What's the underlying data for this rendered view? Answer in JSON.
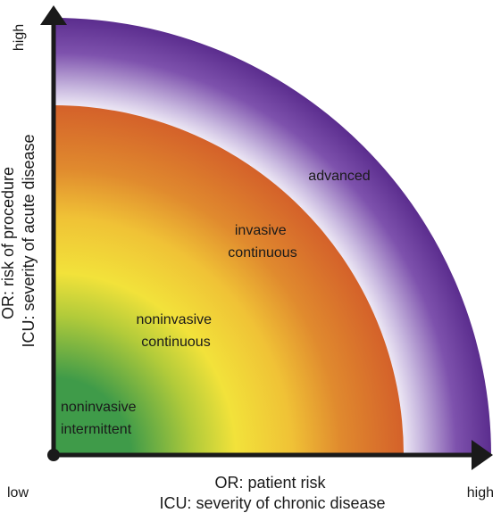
{
  "diagram": {
    "zones": [
      {
        "id": "advanced",
        "lines": [
          "advanced"
        ]
      },
      {
        "id": "invasive-continuous",
        "lines": [
          "invasive",
          "continuous"
        ]
      },
      {
        "id": "noninvasive-continuous",
        "lines": [
          "noninvasive",
          "continuous"
        ]
      },
      {
        "id": "noninvasive-intermittent",
        "lines": [
          "noninvasive",
          "intermittent"
        ]
      }
    ],
    "x_axis": {
      "lines": [
        "OR: patient risk",
        "ICU: severity of chronic disease"
      ],
      "low": "low",
      "high": "high"
    },
    "y_axis": {
      "lines": [
        "OR: risk of procedure",
        "ICU: severity of acute disease"
      ],
      "high": "high"
    },
    "colors": {
      "purple": "#5b2d8e",
      "purple_light": "#b9a6d6",
      "orange": "#d4612a",
      "yellow": "#f2e23a",
      "green": "#3f9b49",
      "axis": "#1a1a1a"
    }
  }
}
